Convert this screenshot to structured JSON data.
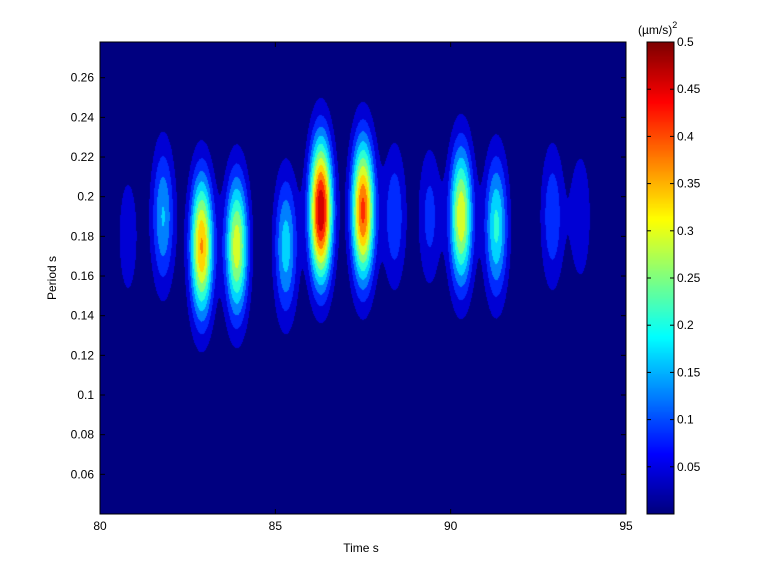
{
  "chart_data": {
    "type": "heatmap",
    "title": "",
    "xlabel": "Time s",
    "ylabel": "Period s",
    "xlim": [
      80,
      95
    ],
    "ylim": [
      0.04,
      0.278
    ],
    "x_ticks": [
      "80",
      "85",
      "90",
      "95"
    ],
    "x_tick_values": [
      80,
      85,
      90,
      95
    ],
    "y_ticks": [
      "0.06",
      "0.08",
      "0.1",
      "0.12",
      "0.14",
      "0.16",
      "0.18",
      "0.2",
      "0.22",
      "0.24",
      "0.26"
    ],
    "y_tick_values": [
      0.06,
      0.08,
      0.1,
      0.12,
      0.14,
      0.16,
      0.18,
      0.2,
      0.22,
      0.24,
      0.26
    ],
    "background_color": "#00008f",
    "colormap": "jet",
    "colorbar": {
      "unit_base": "(µm/s)",
      "unit_exp": "2",
      "range": [
        0,
        0.5
      ],
      "ticks": [
        "0.05",
        "0.1",
        "0.15",
        "0.2",
        "0.25",
        "0.3",
        "0.35",
        "0.4",
        "0.45",
        "0.5"
      ],
      "tick_values": [
        0.05,
        0.1,
        0.15,
        0.2,
        0.25,
        0.3,
        0.35,
        0.4,
        0.45,
        0.5
      ]
    },
    "blobs": [
      {
        "t": 80.8,
        "p": 0.18,
        "amp": 0.07
      },
      {
        "t": 81.8,
        "p": 0.19,
        "amp": 0.17
      },
      {
        "t": 82.9,
        "p": 0.175,
        "amp": 0.38
      },
      {
        "t": 83.9,
        "p": 0.175,
        "amp": 0.32
      },
      {
        "t": 85.3,
        "p": 0.175,
        "amp": 0.19
      },
      {
        "t": 86.3,
        "p": 0.193,
        "amp": 0.5
      },
      {
        "t": 87.5,
        "p": 0.193,
        "amp": 0.43
      },
      {
        "t": 88.4,
        "p": 0.19,
        "amp": 0.12
      },
      {
        "t": 89.4,
        "p": 0.19,
        "amp": 0.1
      },
      {
        "t": 90.3,
        "p": 0.19,
        "amp": 0.33
      },
      {
        "t": 91.3,
        "p": 0.185,
        "amp": 0.22
      },
      {
        "t": 92.9,
        "p": 0.19,
        "amp": 0.12
      },
      {
        "t": 93.7,
        "p": 0.19,
        "amp": 0.08
      }
    ]
  }
}
